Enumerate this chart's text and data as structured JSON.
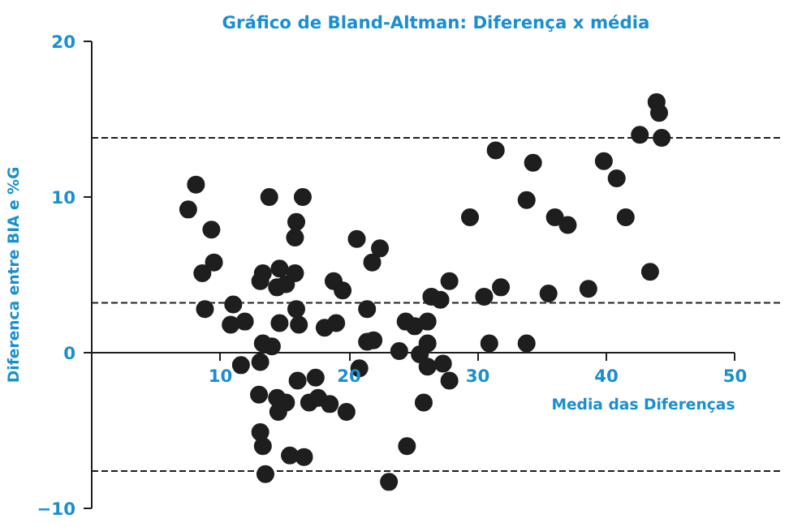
{
  "chart_data": {
    "type": "scatter",
    "title": "Gráfico de Bland-Altman: Diferença x média",
    "xlabel": "Media das Diferenças",
    "ylabel": "Diferenca entre BIA e %G",
    "xlim": [
      0,
      50
    ],
    "ylim": [
      -10,
      20
    ],
    "xticks": [
      10,
      20,
      30,
      40,
      50
    ],
    "yticks": [
      -10,
      0,
      10,
      20
    ],
    "grid": false,
    "marker": "circle",
    "series": [
      {
        "color": "#1e1e1e",
        "x": [
          7.5,
          8.1,
          9.3,
          9.5,
          8.6,
          13.8,
          16.4,
          15.9,
          15.8,
          20.6,
          22.4,
          21.8,
          13.3,
          14.6,
          15.8,
          18.8,
          13.1,
          14.4,
          15.1,
          19.5,
          8.8,
          11.0,
          10.8,
          11.9,
          14.6,
          15.9,
          16.1,
          18.1,
          19.0,
          21.4,
          21.4,
          21.9,
          23.9,
          13.3,
          14.0,
          11.6,
          13.1,
          20.8,
          13.0,
          14.4,
          15.1,
          14.5,
          16.0,
          17.4,
          16.9,
          17.6,
          18.5,
          19.8,
          13.1,
          13.3,
          15.4,
          16.5,
          13.5,
          23.1,
          24.5,
          24.4,
          43.9,
          44.1,
          42.6,
          44.3,
          31.4,
          34.3,
          39.8,
          40.8,
          33.8,
          36.0,
          37.0,
          41.5,
          29.4,
          43.4,
          27.8,
          26.4,
          27.1,
          31.8,
          30.5,
          35.5,
          38.6,
          25.1,
          26.1,
          30.9,
          33.8,
          26.1,
          25.5,
          26.1,
          27.3,
          27.8,
          25.8
        ],
        "values": [
          9.2,
          10.8,
          7.9,
          5.8,
          5.1,
          10.0,
          10.0,
          8.4,
          7.4,
          7.3,
          6.7,
          5.8,
          5.1,
          5.4,
          5.1,
          4.6,
          4.6,
          4.2,
          4.4,
          4.0,
          2.8,
          3.1,
          1.8,
          2.0,
          1.9,
          2.8,
          1.8,
          1.6,
          1.9,
          2.8,
          0.7,
          0.8,
          0.1,
          0.6,
          0.4,
          -0.8,
          -0.6,
          -1.0,
          -2.7,
          -2.9,
          -3.2,
          -3.8,
          -1.8,
          -1.6,
          -3.2,
          -2.9,
          -3.3,
          -3.8,
          -5.1,
          -6.0,
          -6.6,
          -6.7,
          -7.8,
          -8.3,
          -6.0,
          2.0,
          16.1,
          15.4,
          14.0,
          13.8,
          13.0,
          12.2,
          12.3,
          11.2,
          9.8,
          8.7,
          8.2,
          8.7,
          8.7,
          5.2,
          4.6,
          3.6,
          3.4,
          4.2,
          3.6,
          3.8,
          4.1,
          1.7,
          2.0,
          0.6,
          0.6,
          0.6,
          -0.1,
          -0.9,
          -0.7,
          -1.8,
          -3.2
        ]
      }
    ],
    "ref_lines": [
      {
        "axis": "y",
        "value": 13.8,
        "color": "#1e1e1e",
        "line_style": "dashed"
      },
      {
        "axis": "y",
        "value": 3.2,
        "color": "#1e1e1e",
        "line_style": "dashed"
      },
      {
        "axis": "y",
        "value": -7.6,
        "color": "#1e1e1e",
        "line_style": "dashed"
      }
    ]
  }
}
